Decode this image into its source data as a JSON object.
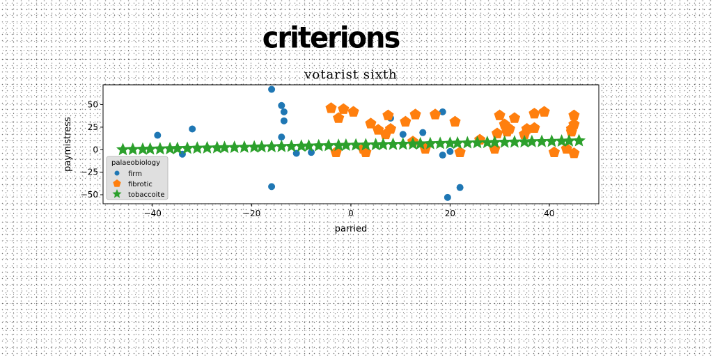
{
  "headline": "criterions",
  "chart_data": {
    "type": "scatter",
    "title": "votarist sixth",
    "xlabel": "parried",
    "ylabel": "paymistress",
    "xlim": [
      -50,
      50
    ],
    "ylim": [
      -60,
      72
    ],
    "xticks": [
      -40,
      -20,
      0,
      20,
      40
    ],
    "xtick_labels": [
      "−40",
      "−20",
      "0",
      "20",
      "40"
    ],
    "yticks": [
      -50,
      -25,
      0,
      25,
      50
    ],
    "ytick_labels": [
      "−50",
      "−25",
      "0",
      "25",
      "50"
    ],
    "grid": false,
    "legend": {
      "title": "palaeobiology",
      "placement": "lower-left"
    },
    "series": [
      {
        "name": "firm",
        "marker": "circle",
        "color": "#1f77b4",
        "x": [
          -39,
          -34,
          -32,
          -16,
          -16,
          -14,
          -14,
          -13.5,
          -13.5,
          -11,
          -8,
          8,
          10.5,
          14.5,
          18.5,
          18.5,
          19.5,
          20,
          22
        ],
        "y": [
          16,
          -5,
          23,
          67,
          -41,
          49,
          14,
          42,
          32,
          -4,
          -3,
          35,
          17,
          19,
          42,
          -6,
          -53,
          -2,
          -42
        ]
      },
      {
        "name": "fibrotic",
        "marker": "pentagon",
        "color": "#ff7f0e",
        "x": [
          -4,
          -3,
          -2.5,
          -1.5,
          0.5,
          2.5,
          3,
          4,
          5.5,
          7,
          7.5,
          8,
          11,
          12.5,
          13,
          15,
          17,
          21,
          22,
          26,
          29,
          29.5,
          30,
          31,
          31.5,
          32,
          33,
          35,
          35.5,
          37,
          37,
          39,
          41,
          43.5,
          44.5,
          44.5,
          45,
          45,
          45
        ],
        "y": [
          46,
          -3,
          35,
          45,
          42,
          1,
          -3,
          29,
          22,
          17,
          38,
          23,
          31,
          9,
          39,
          1,
          39,
          31,
          -3,
          11,
          1,
          18,
          38,
          28,
          20,
          23,
          35,
          17,
          23,
          24,
          40,
          42,
          -3,
          1,
          20,
          23,
          38,
          28,
          -4
        ]
      },
      {
        "name": "tobaccoite",
        "marker": "star",
        "color": "#2ca02c",
        "x": [
          -46,
          -44,
          -42,
          -40.5,
          -38.5,
          -36.5,
          -35,
          -33,
          -31,
          -29,
          -27,
          -25.5,
          -23.5,
          -21.5,
          -19.5,
          -18,
          -16,
          -14,
          -12,
          -10,
          -8.5,
          -6.5,
          -4.5,
          -2.5,
          -1,
          1,
          3,
          5,
          6.5,
          8.5,
          10.5,
          12.5,
          14,
          16,
          18,
          20,
          21.5,
          23.5,
          25.5,
          27.5,
          29,
          31,
          33,
          35,
          36.5,
          38.5,
          40.5,
          42.5,
          44,
          46
        ],
        "y": [
          0,
          0.3,
          0.5,
          0.7,
          0.9,
          1.1,
          1.3,
          1.5,
          1.7,
          1.9,
          2.1,
          2.3,
          2.5,
          2.7,
          2.9,
          3.1,
          3.3,
          3.5,
          3.7,
          3.9,
          4.1,
          4.3,
          4.5,
          4.7,
          4.9,
          5.1,
          5.3,
          5.5,
          5.7,
          5.9,
          6.1,
          6.3,
          6.5,
          6.7,
          6.9,
          7.1,
          7.3,
          7.5,
          7.7,
          7.9,
          8.1,
          8.3,
          8.5,
          8.7,
          8.9,
          9.1,
          9.3,
          9.5,
          9.7,
          9.9
        ]
      }
    ]
  }
}
